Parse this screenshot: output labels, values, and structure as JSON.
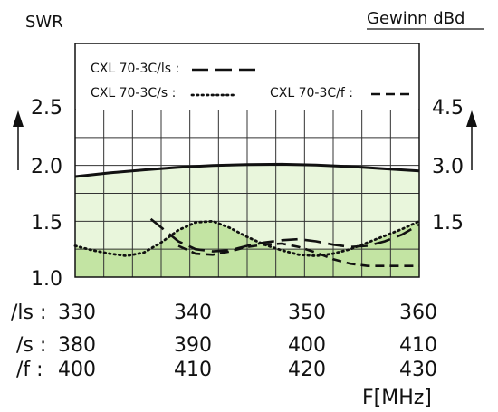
{
  "chart_data": {
    "type": "line",
    "left_axis_label": "SWR",
    "right_axis_label": "Gewinn dBd",
    "x_unit_label": "F[MHz]",
    "left_ticks": [
      {
        "value": 1.0,
        "label": "1.0"
      },
      {
        "value": 1.5,
        "label": "1.5"
      },
      {
        "value": 2.0,
        "label": "2.0"
      },
      {
        "value": 2.5,
        "label": "2.5"
      }
    ],
    "right_ticks": [
      {
        "value": 1.5,
        "label": "1.5"
      },
      {
        "value": 3.0,
        "label": "3.0"
      },
      {
        "value": 4.5,
        "label": "4.5"
      }
    ],
    "ylim_swr": [
      1.0,
      2.5
    ],
    "ylim_gain": [
      0.0,
      4.5
    ],
    "x_rows": [
      {
        "prefix": "/ls : ",
        "ticks": [
          "330",
          "340",
          "350",
          "360"
        ],
        "range": [
          330,
          360
        ]
      },
      {
        "prefix": "/s : ",
        "ticks": [
          "380",
          "390",
          "400",
          "410"
        ],
        "range": [
          380,
          410
        ]
      },
      {
        "prefix": "/f : ",
        "ticks": [
          "400",
          "410",
          "420",
          "430"
        ],
        "range": [
          400,
          430
        ]
      }
    ],
    "grid": true,
    "legend": [
      {
        "label": "CXL 70-3C/ls :",
        "style": "long-dash"
      },
      {
        "label": "CXL 70-3C/s :",
        "style": "dotted"
      },
      {
        "label": "CXL 70-3C/f :",
        "style": "short-dash"
      }
    ],
    "gain_curve": {
      "style": "solid",
      "x": [
        0,
        0.1,
        0.2,
        0.3,
        0.4,
        0.5,
        0.6,
        0.7,
        0.8,
        0.9,
        1.0
      ],
      "values": [
        2.7,
        2.8,
        2.88,
        2.95,
        3.0,
        3.02,
        3.03,
        3.01,
        2.97,
        2.91,
        2.85
      ]
    },
    "swr_series": [
      {
        "style": "long-dash",
        "x": [
          0.22,
          0.26,
          0.3,
          0.35,
          0.4,
          0.45,
          0.5,
          0.55,
          0.6,
          0.65,
          0.7,
          0.75,
          0.8,
          0.85,
          0.9,
          0.95,
          1.0
        ],
        "values": [
          1.52,
          1.42,
          1.32,
          1.25,
          1.23,
          1.24,
          1.28,
          1.31,
          1.33,
          1.34,
          1.32,
          1.29,
          1.27,
          1.28,
          1.32,
          1.38,
          1.47
        ]
      },
      {
        "style": "dotted",
        "x": [
          0,
          0.05,
          0.1,
          0.15,
          0.2,
          0.25,
          0.3,
          0.35,
          0.4,
          0.45,
          0.5,
          0.55,
          0.6,
          0.65,
          0.7,
          0.75,
          0.8,
          0.85,
          0.9,
          0.95,
          1.0
        ],
        "values": [
          1.28,
          1.24,
          1.21,
          1.19,
          1.22,
          1.31,
          1.42,
          1.49,
          1.5,
          1.44,
          1.36,
          1.29,
          1.24,
          1.2,
          1.19,
          1.21,
          1.25,
          1.31,
          1.37,
          1.43,
          1.5
        ]
      },
      {
        "style": "short-dash",
        "x": [
          0.3,
          0.35,
          0.4,
          0.45,
          0.5,
          0.55,
          0.6,
          0.65,
          0.7,
          0.75,
          0.8,
          0.85,
          0.9,
          0.95,
          1.0
        ],
        "values": [
          1.28,
          1.21,
          1.2,
          1.23,
          1.27,
          1.29,
          1.3,
          1.27,
          1.22,
          1.16,
          1.12,
          1.1,
          1.1,
          1.1,
          1.1
        ]
      }
    ],
    "colors": {
      "fill_light": "#e9f6dc",
      "fill_dark": "#c3e4a3",
      "grid": "#333333",
      "line": "#111111"
    }
  }
}
